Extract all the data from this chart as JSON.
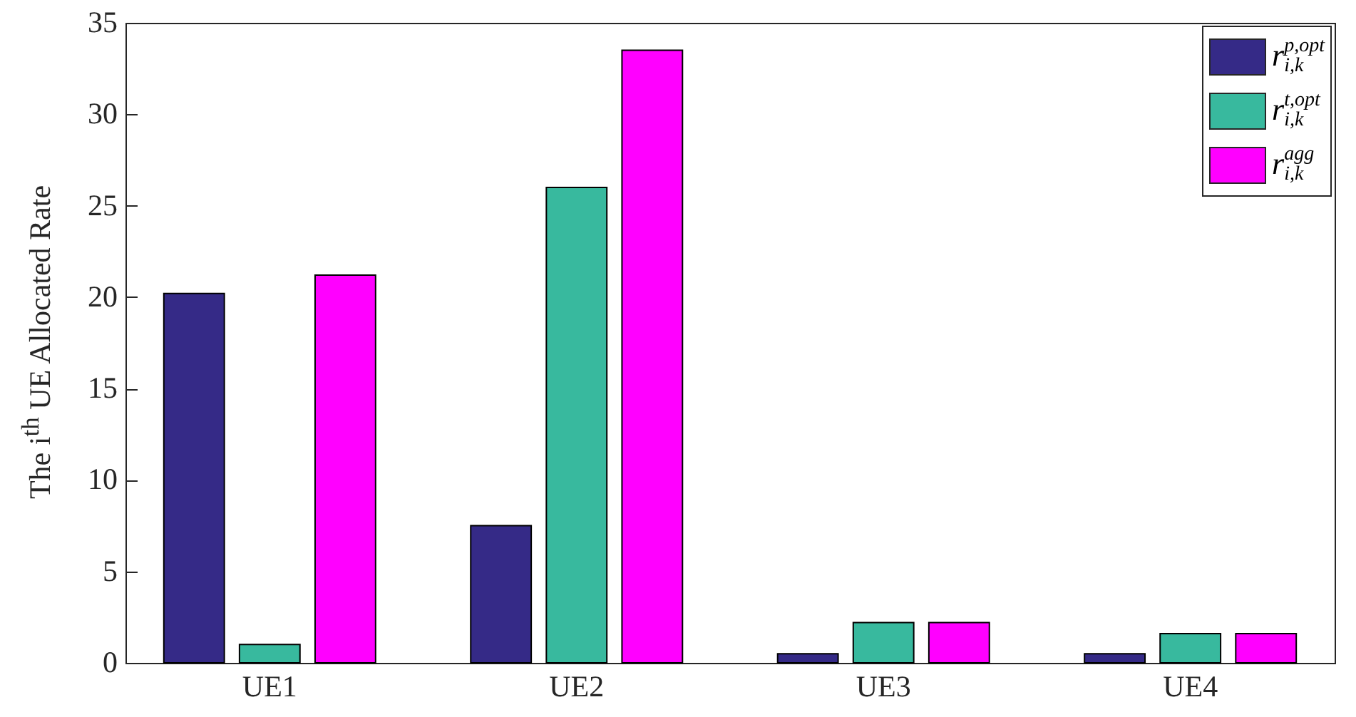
{
  "chart_data": {
    "type": "bar",
    "ylabel": "The i$^{th}$ UE Allocated Rate",
    "categories": [
      "UE1",
      "UE2",
      "UE3",
      "UE4"
    ],
    "series": [
      {
        "name": "r$^{p,opt}$$_{i,k}$",
        "color": "#352a87",
        "values": [
          20.2,
          7.5,
          0.5,
          0.5
        ]
      },
      {
        "name": "r$^{t,opt}$$_{i,k}$",
        "color": "#38b99e",
        "values": [
          1.0,
          26.0,
          2.2,
          1.6
        ]
      },
      {
        "name": "r$^{agg}$$_{i,k}$",
        "color": "#ff00ff",
        "values": [
          21.2,
          33.5,
          2.2,
          1.6
        ]
      }
    ],
    "ylim": [
      0,
      35
    ],
    "yticks": [
      0,
      5,
      10,
      15,
      20,
      25,
      30,
      35
    ],
    "grid": false,
    "legend": "top right"
  }
}
